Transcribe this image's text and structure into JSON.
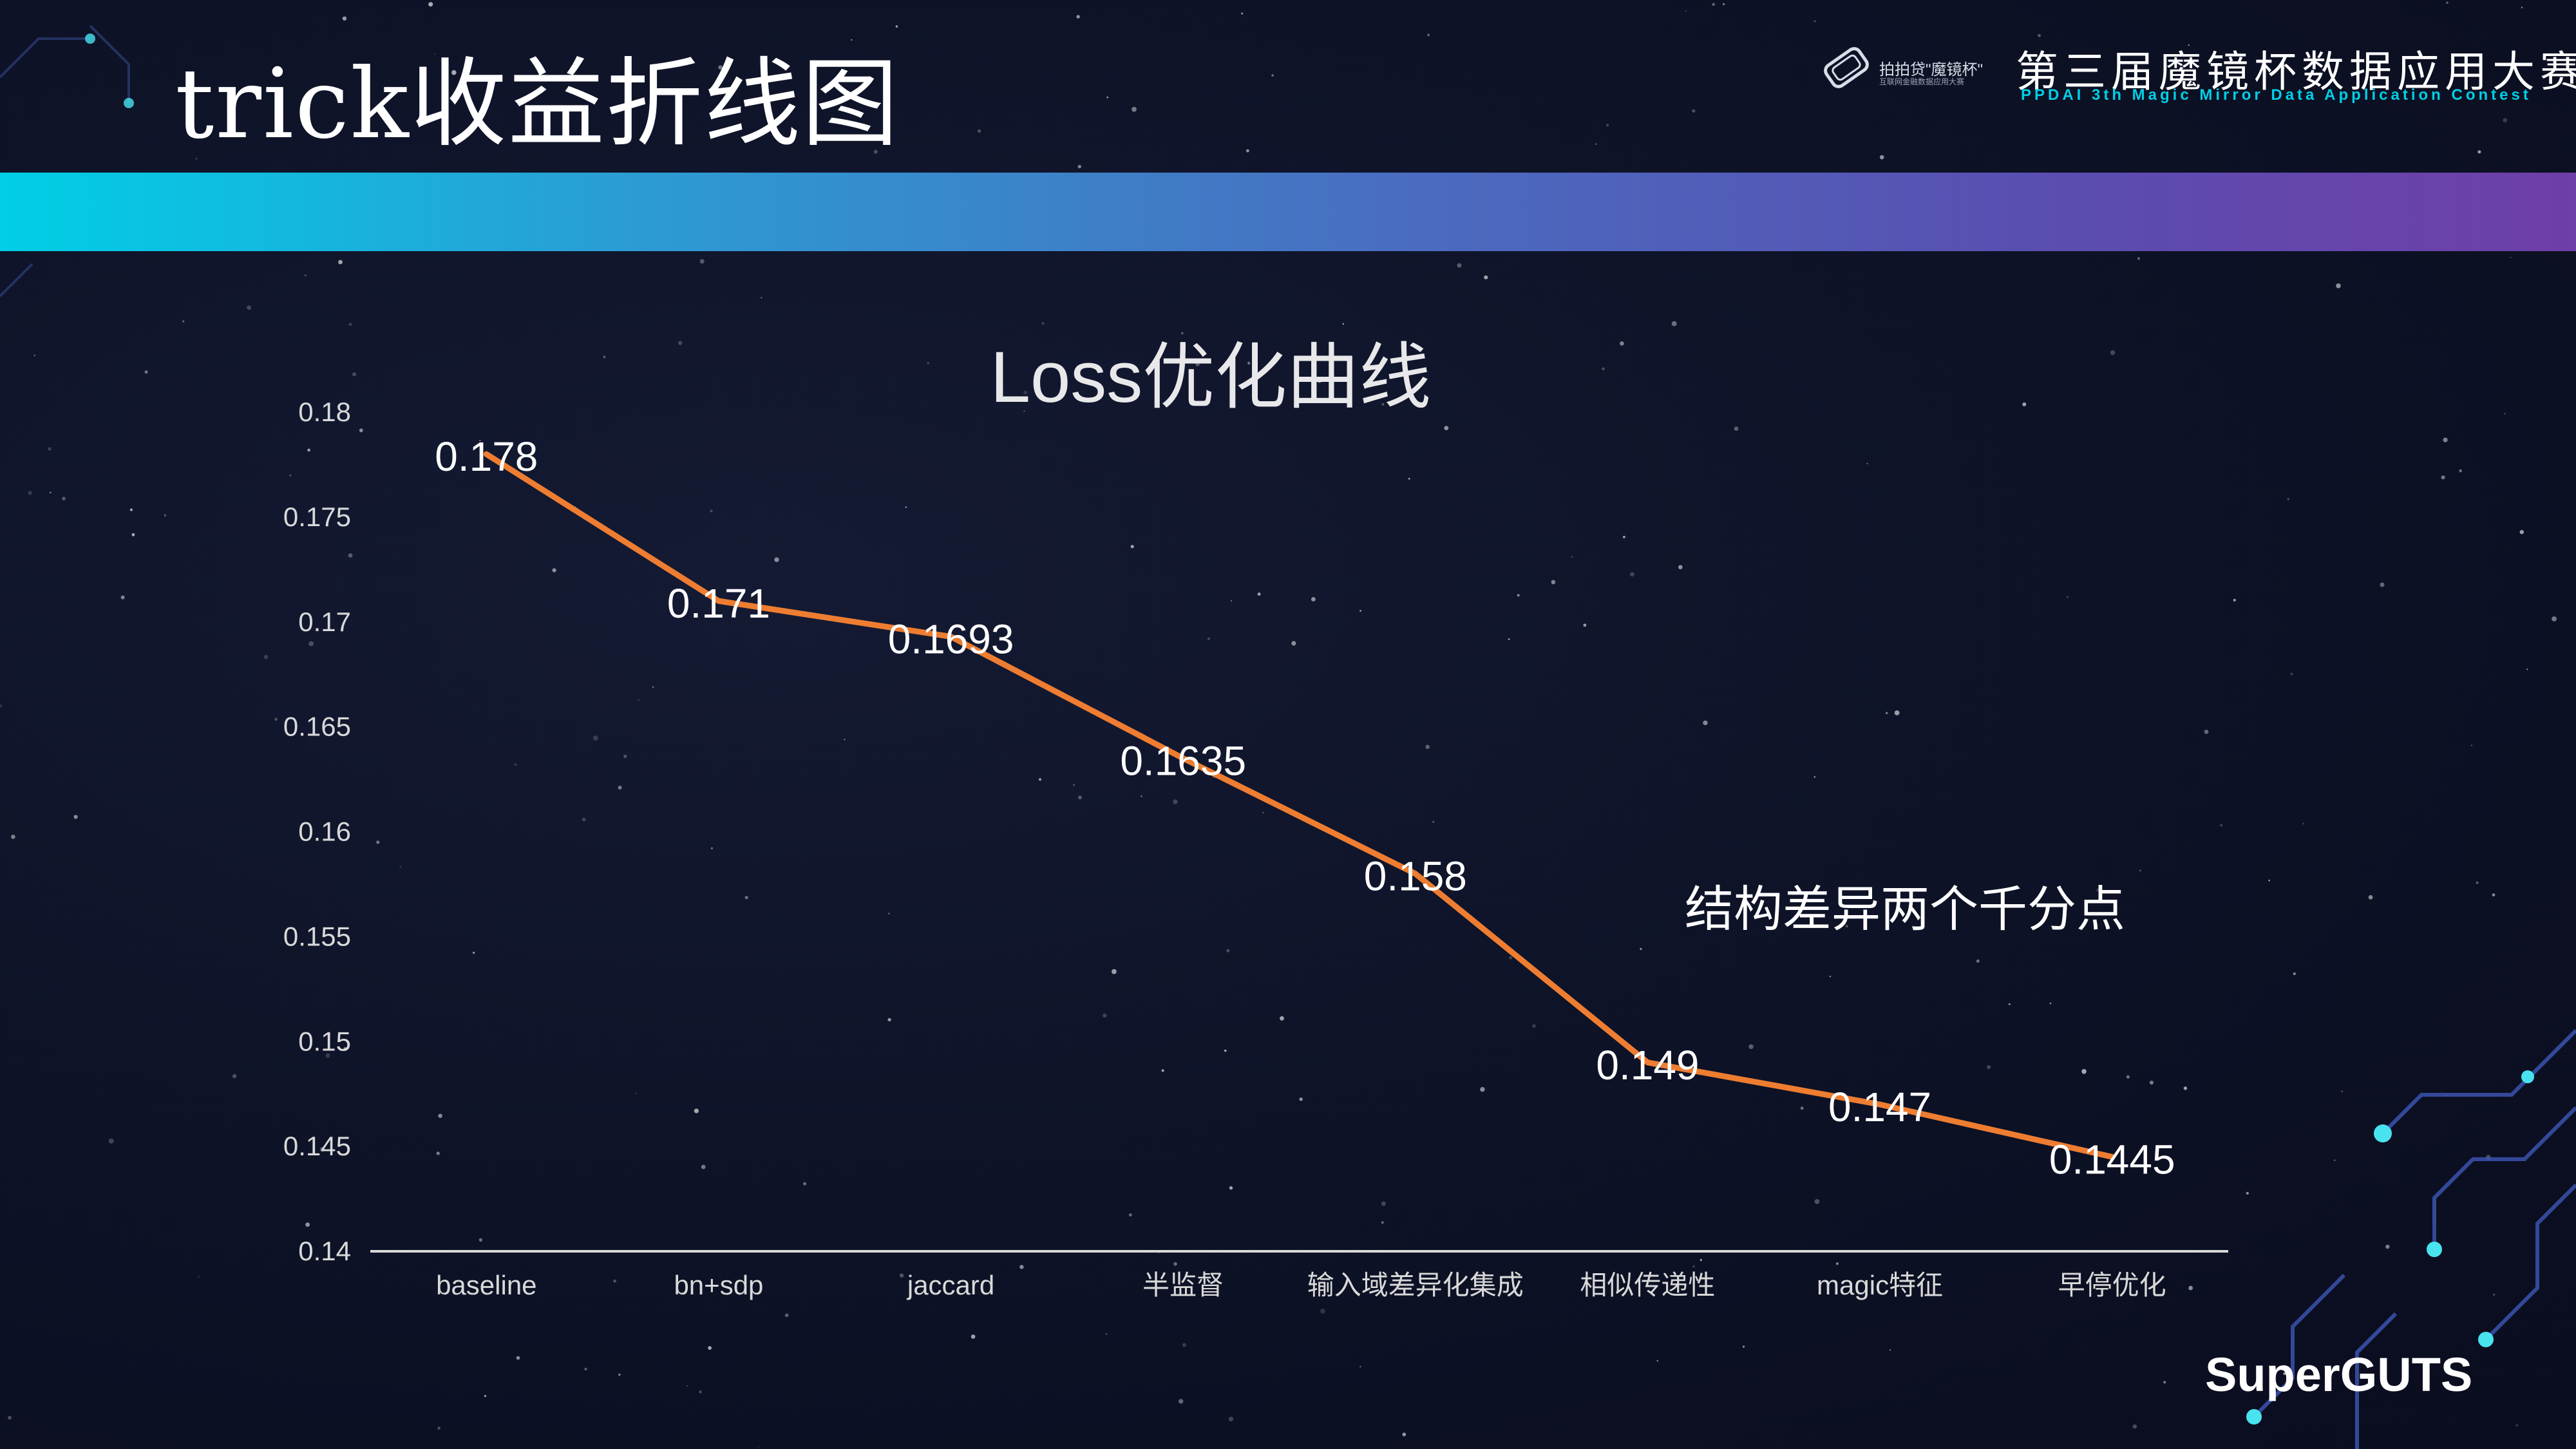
{
  "slide": {
    "title": "trick收益折线图"
  },
  "header": {
    "logo_text": "拍拍贷\"魔镜杯\"",
    "logo_subtext": "互联网金融数据应用大赛",
    "contest_title": "第三届魔镜杯数据应用大赛",
    "contest_subtitle": "PPDAI 3th Magic Mirror Data Application Contest"
  },
  "footer": {
    "brand": "SuperGUTS"
  },
  "colors": {
    "line": "#ee7d31",
    "text": "#ffffff",
    "axis": "#d9d9d9",
    "banner_start": "#00cfe6",
    "banner_end": "#6f3ea8"
  },
  "chart_data": {
    "type": "line",
    "title": "Loss优化曲线",
    "xlabel": "",
    "ylabel": "",
    "categories": [
      "baseline",
      "bn+sdp",
      "jaccard",
      "半监督",
      "输入域差异化集成",
      "相似传递性",
      "magic特征",
      "早停优化"
    ],
    "values": [
      0.178,
      0.171,
      0.1693,
      0.1635,
      0.158,
      0.149,
      0.147,
      0.1445
    ],
    "data_labels": [
      "0.178",
      "0.171",
      "0.1693",
      "0.1635",
      "0.158",
      "0.149",
      "0.147",
      "0.1445"
    ],
    "ylim": [
      0.14,
      0.18
    ],
    "yticks": [
      "0.14",
      "0.145",
      "0.15",
      "0.155",
      "0.16",
      "0.165",
      "0.17",
      "0.175",
      "0.18"
    ],
    "annotation": "结构差异两个千分点",
    "grid": false,
    "legend": "none"
  }
}
